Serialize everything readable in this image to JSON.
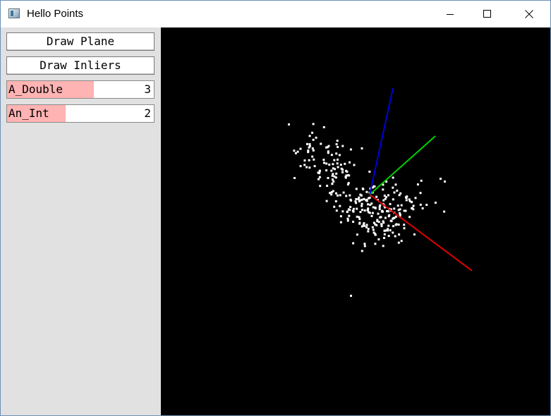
{
  "window": {
    "title": "Hello Points",
    "icon": "app-window-icon",
    "controls": [
      "minimize-icon",
      "maximize-icon",
      "close-icon"
    ]
  },
  "panel": {
    "buttons": {
      "draw_plane": "Draw Plane",
      "draw_inliers": "Draw Inliers"
    },
    "vars": {
      "a_double": {
        "label": "A_Double",
        "value": "3",
        "fill_fraction": 0.59
      },
      "an_int": {
        "label": "An_Int",
        "value": "2",
        "fill_fraction": 0.4
      }
    }
  },
  "scene": {
    "background": "#000000",
    "point_color": "#ffffff",
    "axes": [
      {
        "name": "x-axis",
        "color": "#e00000"
      },
      {
        "name": "y-axis",
        "color": "#00d000"
      },
      {
        "name": "z-axis",
        "color": "#0000d8"
      }
    ]
  }
}
